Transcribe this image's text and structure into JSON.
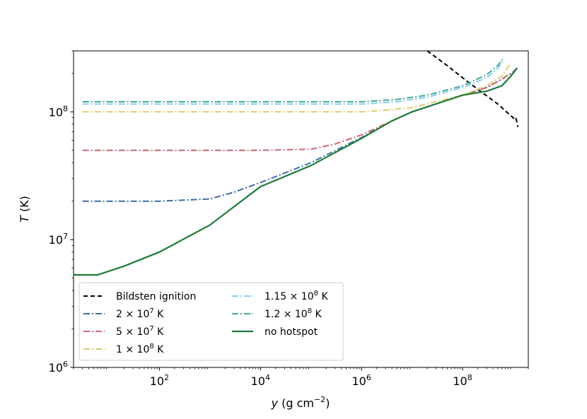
{
  "chart_data": {
    "type": "line",
    "title": "",
    "xlabel": {
      "italic": "y",
      "rest": " (g cm",
      "sup": "−2",
      "end": ")"
    },
    "ylabel": {
      "italic": "T",
      "rest": " (K)"
    },
    "x_scale": "log",
    "y_scale": "log",
    "xlim": [
      2.0,
      2000000000.0
    ],
    "ylim": [
      1000000.0,
      300000000.0
    ],
    "grid": false,
    "legend_position": "lower-left",
    "x_ticks": [
      {
        "value": 100,
        "base": "10",
        "exp": "2"
      },
      {
        "value": 10000,
        "base": "10",
        "exp": "4"
      },
      {
        "value": 1000000,
        "base": "10",
        "exp": "6"
      },
      {
        "value": 100000000,
        "base": "10",
        "exp": "8"
      }
    ],
    "y_ticks": [
      {
        "value": 1000000,
        "base": "10",
        "exp": "6"
      },
      {
        "value": 10000000,
        "base": "10",
        "exp": "7"
      },
      {
        "value": 100000000,
        "base": "10",
        "exp": "8"
      }
    ],
    "series": [
      {
        "name": "Bildsten ignition",
        "color": "#000000",
        "dash": "dashed",
        "points": [
          [
            20000000.0,
            300000000.0
          ],
          [
            50000000.0,
            230000000.0
          ],
          [
            100000000.0,
            185000000.0
          ],
          [
            200000000.0,
            150000000.0
          ],
          [
            500000000.0,
            115000000.0
          ],
          [
            1000000000.0,
            90000000.0
          ],
          [
            1100000000.0,
            86000000.0
          ],
          [
            1150000000.0,
            88000000.0
          ],
          [
            1250000000.0,
            76000000.0
          ]
        ]
      },
      {
        "name": "2 × 10^7 K",
        "label_parts": {
          "a": "2 × 10",
          "sup": "7",
          "b": " K"
        },
        "color": "#3d6fa3",
        "dash": "dashdot",
        "points": [
          [
            3.0,
            20000000.0
          ],
          [
            100,
            20000000.0
          ],
          [
            1000,
            20800000.0
          ],
          [
            3000,
            23500000.0
          ],
          [
            10000,
            28000000.0
          ],
          [
            100000,
            40000000.0
          ],
          [
            1000000,
            63000000.0
          ],
          [
            4000000,
            85000000.0
          ],
          [
            10000000.0,
            100000000.0
          ],
          [
            100000000.0,
            135000000.0
          ],
          [
            300000000.0,
            155000000.0
          ],
          [
            600000000.0,
            180000000.0
          ],
          [
            1000000000.0,
            205000000.0
          ],
          [
            1200000000.0,
            220000000.0
          ]
        ]
      },
      {
        "name": "5 × 10^7 K",
        "label_parts": {
          "a": "5 × 10",
          "sup": "7",
          "b": " K"
        },
        "color": "#cc6677",
        "dash": "dashdot",
        "points": [
          [
            3.0,
            50000000.0
          ],
          [
            10000,
            50000000.0
          ],
          [
            100000,
            51000000.0
          ],
          [
            300000,
            56000000.0
          ],
          [
            1000000,
            66000000.0
          ],
          [
            4000000,
            85000000.0
          ],
          [
            10000000.0,
            100000000.0
          ],
          [
            100000000.0,
            135000000.0
          ],
          [
            300000000.0,
            155000000.0
          ],
          [
            600000000.0,
            180000000.0
          ],
          [
            1000000000.0,
            205000000.0
          ],
          [
            1200000000.0,
            220000000.0
          ]
        ]
      },
      {
        "name": "1 × 10^8 K",
        "label_parts": {
          "a": "1 × 10",
          "sup": "8",
          "b": " K"
        },
        "color": "#ddcc77",
        "dash": "dashdot",
        "points": [
          [
            3.0,
            100000000.0
          ],
          [
            1000000,
            100000000.0
          ],
          [
            3000000,
            103000000.0
          ],
          [
            10000000.0,
            108000000.0
          ],
          [
            100000000.0,
            135000000.0
          ],
          [
            300000000.0,
            160000000.0
          ],
          [
            600000000.0,
            190000000.0
          ],
          [
            900000000.0,
            240000000.0
          ]
        ]
      },
      {
        "name": "1.15 × 10^8 K",
        "label_parts": {
          "a": "1.15 × 10",
          "sup": "8",
          "b": " K"
        },
        "color": "#88ccee",
        "dash": "dashdot",
        "points": [
          [
            3.0,
            115000000.0
          ],
          [
            1000000,
            115000000.0
          ],
          [
            5000000,
            120000000.0
          ],
          [
            20000000.0,
            130000000.0
          ],
          [
            100000000.0,
            155000000.0
          ],
          [
            300000000.0,
            185000000.0
          ],
          [
            500000000.0,
            220000000.0
          ],
          [
            650000000.0,
            255000000.0
          ]
        ]
      },
      {
        "name": "1.2 × 10^8 K",
        "label_parts": {
          "a": "1.2 × 10",
          "sup": "8",
          "b": " K"
        },
        "color": "#44aa99",
        "dash": "dashdot",
        "points": [
          [
            3.0,
            120000000.0
          ],
          [
            1000000,
            120000000.0
          ],
          [
            5000000,
            125000000.0
          ],
          [
            20000000.0,
            135000000.0
          ],
          [
            100000000.0,
            160000000.0
          ],
          [
            300000000.0,
            195000000.0
          ],
          [
            500000000.0,
            230000000.0
          ],
          [
            650000000.0,
            265000000.0
          ]
        ]
      },
      {
        "name": "no hotspot",
        "color": "#1e7a3a",
        "dash": "solid",
        "points": [
          [
            2.0,
            5300000.0
          ],
          [
            6.0,
            5300000.0
          ],
          [
            20,
            6200000.0
          ],
          [
            100,
            8000000.0
          ],
          [
            1000,
            13000000.0
          ],
          [
            10000,
            26000000.0
          ],
          [
            100000,
            38000000.0
          ],
          [
            1000000,
            62000000.0
          ],
          [
            4000000,
            85000000.0
          ],
          [
            10000000.0,
            100000000.0
          ],
          [
            100000000.0,
            135000000.0
          ],
          [
            300000000.0,
            145000000.0
          ],
          [
            600000000.0,
            160000000.0
          ],
          [
            900000000.0,
            190000000.0
          ],
          [
            1200000000.0,
            220000000.0
          ]
        ]
      }
    ]
  }
}
